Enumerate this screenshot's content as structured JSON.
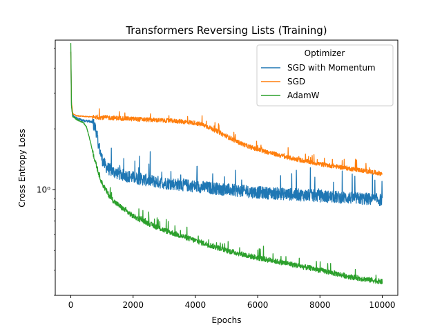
{
  "chart_data": {
    "type": "line",
    "title": "Transformers Reversing Lists (Training)",
    "xlabel": "Epochs",
    "ylabel": "Cross Entropy Loss",
    "xlim": [
      -500,
      10500
    ],
    "ylim": [
      0.3,
      5.5
    ],
    "yscale": "log",
    "grid": false,
    "xticks": [
      0,
      2000,
      4000,
      6000,
      8000,
      10000
    ],
    "xtick_labels": [
      "0",
      "2000",
      "4000",
      "6000",
      "8000",
      "10000"
    ],
    "yticks": [
      1
    ],
    "ytick_labels": [
      "10⁰"
    ],
    "legend": {
      "title": "Optimizer",
      "placement": "top-right"
    },
    "series": [
      {
        "name": "SGD with Momentum",
        "color": "#1f77b4",
        "x": [
          0,
          20,
          60,
          100,
          200,
          400,
          600,
          700,
          800,
          900,
          1000,
          1100,
          1200,
          1400,
          1600,
          2000,
          2500,
          3000,
          3500,
          4000,
          5000,
          6000,
          7000,
          8000,
          9000,
          10000
        ],
        "y": [
          4.8,
          2.6,
          2.35,
          2.3,
          2.25,
          2.2,
          2.18,
          2.15,
          2.0,
          1.65,
          1.42,
          1.32,
          1.27,
          1.22,
          1.19,
          1.15,
          1.11,
          1.08,
          1.06,
          1.04,
          1.0,
          0.97,
          0.95,
          0.93,
          0.91,
          0.89
        ],
        "noise": 0.07
      },
      {
        "name": "SGD",
        "color": "#ff7f0e",
        "x": [
          0,
          20,
          60,
          100,
          200,
          500,
          1000,
          2000,
          3000,
          3500,
          4000,
          4300,
          4600,
          5000,
          5300,
          5600,
          6000,
          7000,
          8000,
          9000,
          10000
        ],
        "y": [
          4.8,
          2.7,
          2.4,
          2.35,
          2.32,
          2.3,
          2.28,
          2.24,
          2.2,
          2.18,
          2.14,
          2.08,
          1.98,
          1.84,
          1.74,
          1.66,
          1.58,
          1.44,
          1.34,
          1.27,
          1.2
        ],
        "noise": 0.025
      },
      {
        "name": "AdamW",
        "color": "#2ca02c",
        "x": [
          0,
          20,
          60,
          100,
          200,
          300,
          400,
          500,
          600,
          700,
          800,
          900,
          1000,
          1200,
          1400,
          1700,
          2000,
          2500,
          3000,
          4000,
          5000,
          6000,
          7000,
          8000,
          9000,
          10000
        ],
        "y": [
          5.3,
          2.6,
          2.3,
          2.28,
          2.22,
          2.18,
          2.15,
          2.05,
          1.8,
          1.55,
          1.35,
          1.2,
          1.08,
          0.95,
          0.87,
          0.8,
          0.74,
          0.68,
          0.63,
          0.56,
          0.5,
          0.46,
          0.43,
          0.4,
          0.37,
          0.35
        ],
        "noise": 0.03
      }
    ]
  }
}
